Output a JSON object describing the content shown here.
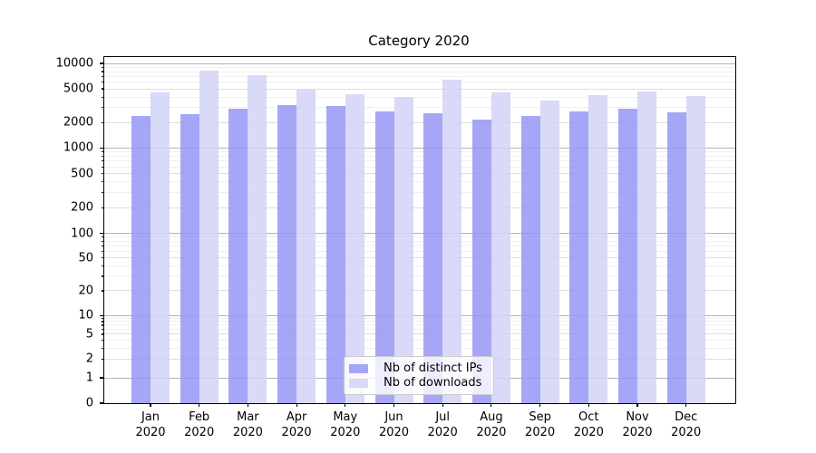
{
  "chart_data": {
    "type": "bar",
    "title": "Category 2020",
    "categories": [
      "Jan\n2020",
      "Feb\n2020",
      "Mar\n2020",
      "Apr\n2020",
      "May\n2020",
      "Jun\n2020",
      "Jul\n2020",
      "Aug\n2020",
      "Sep\n2020",
      "Oct\n2020",
      "Nov\n2020",
      "Dec\n2020"
    ],
    "series": [
      {
        "name": "Nb of distinct IPs",
        "color": "#a6a6f7",
        "color_rgba": "rgba(150,150,246,0.85)",
        "values": [
          2400,
          2500,
          2900,
          3200,
          3100,
          2700,
          2600,
          2150,
          2400,
          2700,
          2900,
          2650
        ]
      },
      {
        "name": "Nb of downloads",
        "color": "#d9d9f8",
        "color_rgba": "rgba(210,210,247,0.85)",
        "values": [
          4550,
          8200,
          7250,
          4850,
          4350,
          4050,
          6400,
          4550,
          3650,
          4200,
          4650,
          4150
        ]
      }
    ],
    "xlabel": "",
    "ylabel": "",
    "yscale": "symlog",
    "yticks": [
      0,
      1,
      2,
      5,
      10,
      20,
      50,
      100,
      200,
      500,
      1000,
      2000,
      5000,
      10000
    ],
    "grid": true,
    "legend_position": "lower center"
  }
}
